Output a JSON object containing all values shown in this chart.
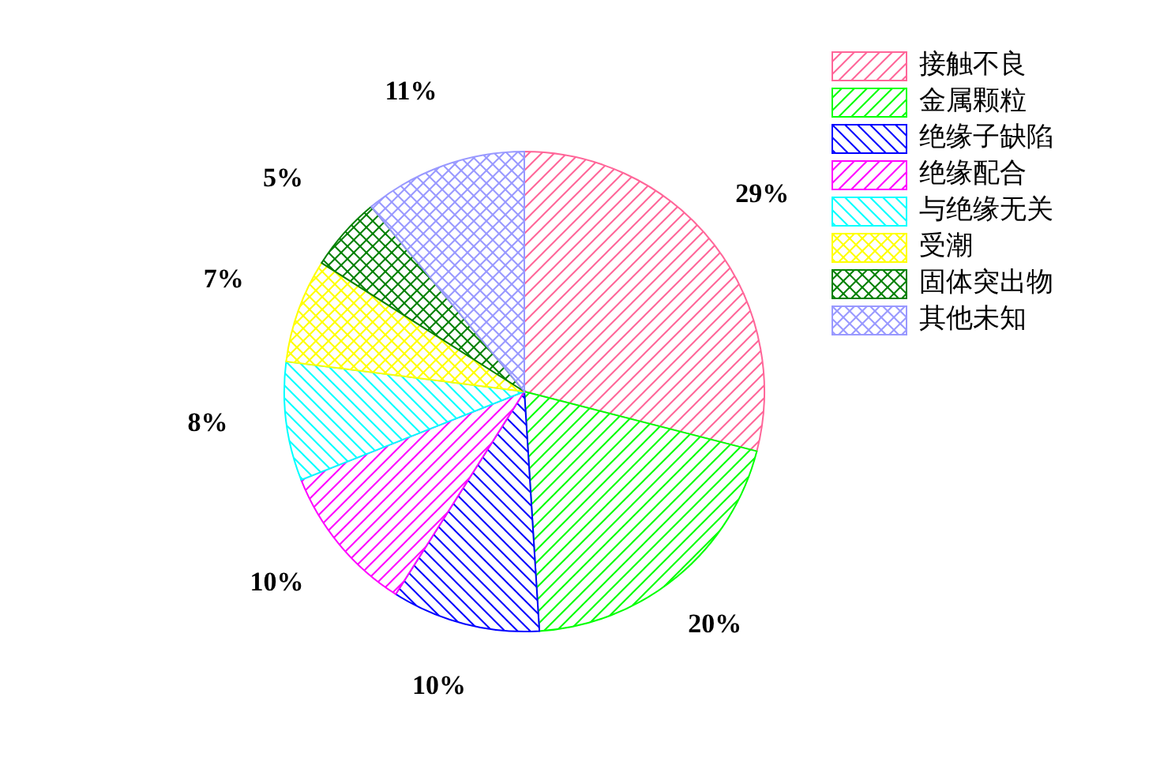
{
  "chart_data": {
    "type": "pie",
    "categories": [
      "接触不良",
      "金属颗粒",
      "绝缘子缺陷",
      "绝缘配合",
      "与绝缘无关",
      "受潮",
      "固体突出物",
      "其他未知"
    ],
    "values": [
      29,
      20,
      10,
      10,
      8,
      7,
      5,
      11
    ],
    "value_labels": [
      "29%",
      "20%",
      "10%",
      "10%",
      "8%",
      "7%",
      "5%",
      "11%"
    ],
    "colors": [
      "#ff6699",
      "#00ff00",
      "#0000ff",
      "#ff00ff",
      "#00ffff",
      "#ffff00",
      "#008000",
      "#9999ff"
    ],
    "legend": "top right"
  }
}
